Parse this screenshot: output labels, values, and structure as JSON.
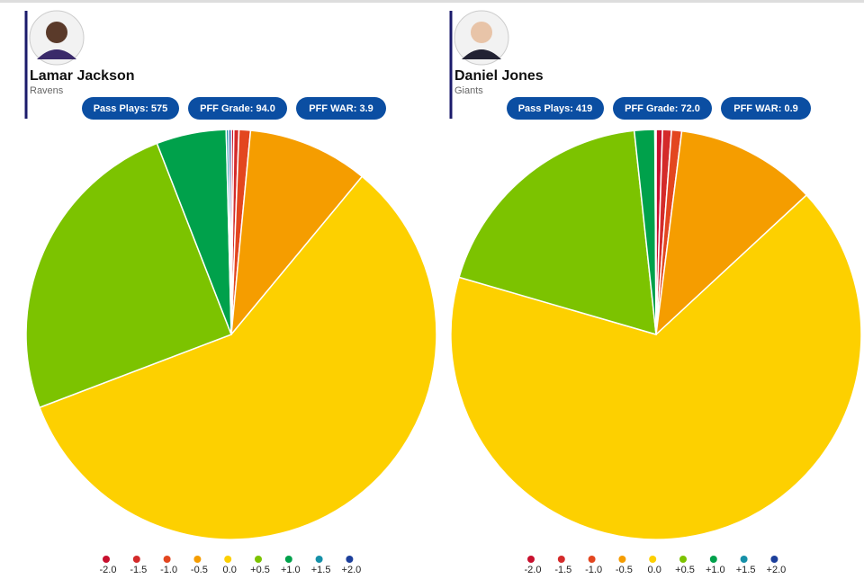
{
  "chart_data": [
    {
      "type": "pie",
      "title": "Lamar Jackson",
      "subtitle": "Ravens",
      "stats": [
        "Pass Plays: 575",
        "PFF Grade: 94.0",
        "PFF WAR: 3.9"
      ],
      "categories": [
        "-2.0",
        "-1.5",
        "-1.0",
        "-0.5",
        "0.0",
        "+0.5",
        "+1.0",
        "+1.5",
        "+2.0"
      ],
      "values": [
        0.2,
        0.4,
        0.9,
        9.5,
        58.2,
        24.9,
        5.5,
        0.2,
        0.2
      ],
      "colors": [
        "#c8102e",
        "#d42a2a",
        "#e3461f",
        "#f59d00",
        "#fdd000",
        "#7cc300",
        "#00a14b",
        "#1590a8",
        "#1c3f9b"
      ]
    },
    {
      "type": "pie",
      "title": "Daniel Jones",
      "subtitle": "Giants",
      "stats": [
        "Pass Plays: 419",
        "PFF Grade: 72.0",
        "PFF WAR: 0.9"
      ],
      "categories": [
        "-2.0",
        "-1.5",
        "-1.0",
        "-0.5",
        "0.0",
        "+0.5",
        "+1.0",
        "+1.5",
        "+2.0"
      ],
      "values": [
        0.5,
        0.7,
        0.8,
        11.1,
        66.4,
        18.8,
        1.6,
        0.05,
        0.05
      ],
      "colors": [
        "#c8102e",
        "#d42a2a",
        "#e3461f",
        "#f59d00",
        "#fdd000",
        "#7cc300",
        "#00a14b",
        "#1590a8",
        "#1c3f9b"
      ]
    }
  ]
}
